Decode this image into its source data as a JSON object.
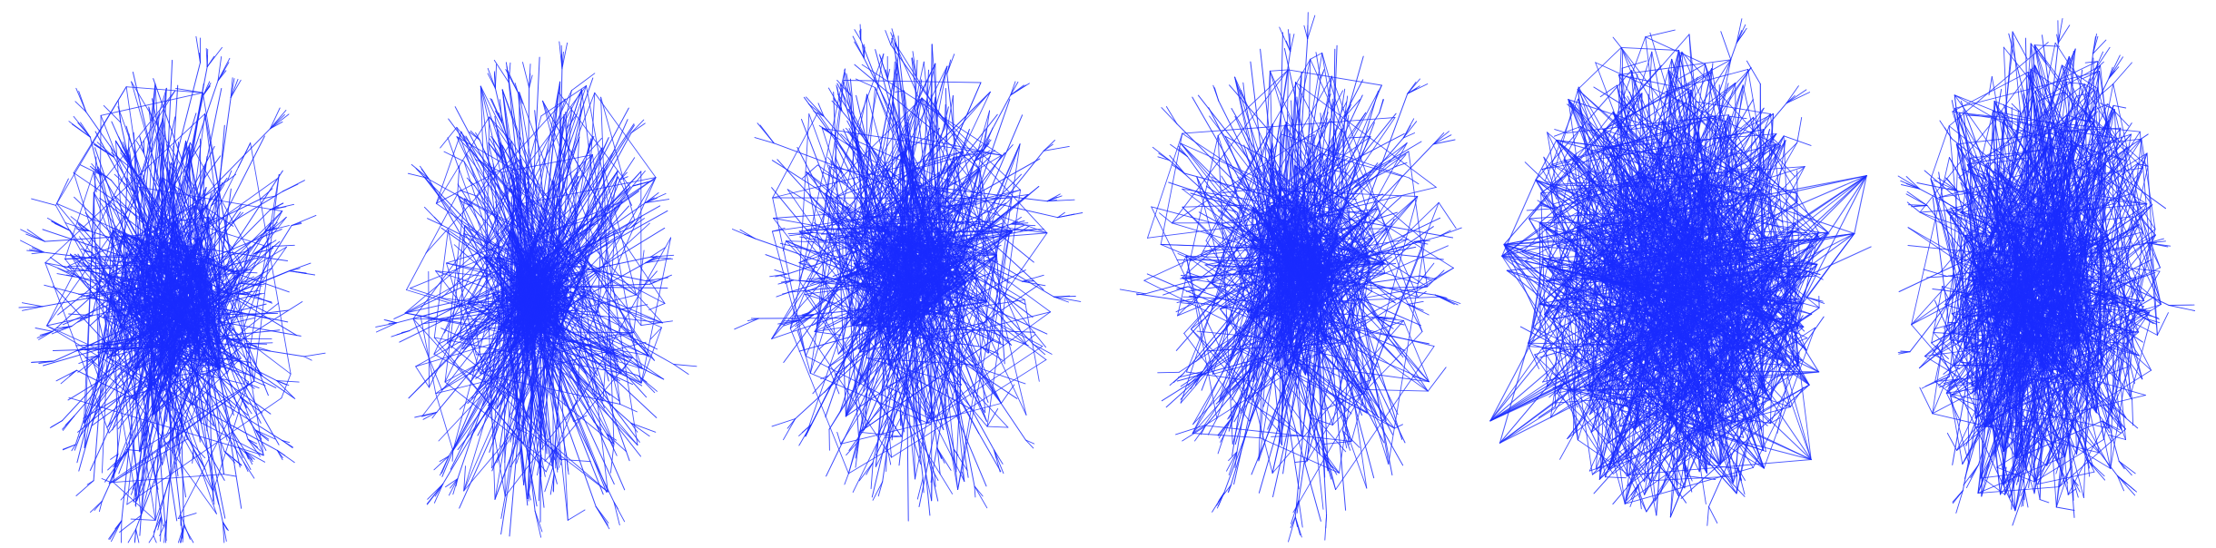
{
  "figure": {
    "panel_count": 6,
    "edge_color": "#1a2cff",
    "background_color": "#ffffff",
    "panels": [
      {
        "id": "layout-1",
        "shape": "dense-core-radial"
      },
      {
        "id": "layout-2",
        "shape": "compact-core-branching"
      },
      {
        "id": "layout-3",
        "shape": "dense-core-radial"
      },
      {
        "id": "layout-4",
        "shape": "dense-core-radial"
      },
      {
        "id": "layout-5",
        "shape": "uniform-ellipse"
      },
      {
        "id": "layout-6",
        "shape": "uniform-ellipse-dense-center"
      }
    ]
  }
}
